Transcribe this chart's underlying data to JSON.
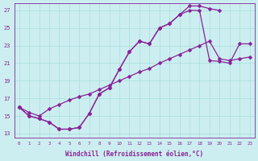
{
  "xlabel": "Windchill (Refroidissement éolien,°C)",
  "bg_color": "#cceef0",
  "line_color": "#882299",
  "xlim": [
    -0.5,
    23.5
  ],
  "ylim": [
    12.5,
    27.8
  ],
  "xticks": [
    0,
    1,
    2,
    3,
    4,
    5,
    6,
    7,
    8,
    9,
    10,
    11,
    12,
    13,
    14,
    15,
    16,
    17,
    18,
    19,
    20,
    21,
    22,
    23
  ],
  "yticks": [
    13,
    15,
    17,
    19,
    21,
    23,
    25,
    27
  ],
  "grid_color": "#aadddd",
  "font_color": "#882299",
  "markersize": 2.5,
  "lw": 0.9,
  "curve_upper_x": [
    0,
    1,
    2,
    3,
    4,
    5,
    6,
    7,
    8,
    9,
    10,
    11,
    12,
    13,
    14,
    15,
    16,
    17,
    18,
    19,
    20
  ],
  "curve_upper_y": [
    16.0,
    15.0,
    14.7,
    14.3,
    13.5,
    13.5,
    13.7,
    15.3,
    17.5,
    18.2,
    20.3,
    22.3,
    23.5,
    23.2,
    25.0,
    25.5,
    26.5,
    27.5,
    27.5,
    27.2,
    27.0
  ],
  "curve_mid_x": [
    0,
    1,
    2,
    3,
    4,
    5,
    6,
    7,
    8,
    9,
    10,
    11,
    12,
    13,
    14,
    15,
    16,
    17,
    18,
    19,
    20,
    21,
    22,
    23
  ],
  "curve_mid_y": [
    16.0,
    15.0,
    14.7,
    14.3,
    13.5,
    13.5,
    13.7,
    15.3,
    17.5,
    18.2,
    20.3,
    22.3,
    23.5,
    23.2,
    25.0,
    25.5,
    26.5,
    27.0,
    27.0,
    21.3,
    21.2,
    21.0,
    23.2,
    23.2
  ],
  "curve_diag_x": [
    0,
    1,
    2,
    3,
    4,
    5,
    6,
    7,
    8,
    9,
    10,
    11,
    12,
    13,
    14,
    15,
    16,
    17,
    18,
    19,
    20,
    21,
    22,
    23
  ],
  "curve_diag_y": [
    16.0,
    15.4,
    15.0,
    15.8,
    16.3,
    16.8,
    17.2,
    17.5,
    18.0,
    18.5,
    19.0,
    19.5,
    20.0,
    20.4,
    21.0,
    21.5,
    22.0,
    22.5,
    23.0,
    23.5,
    21.5,
    21.3,
    21.5,
    21.7
  ]
}
